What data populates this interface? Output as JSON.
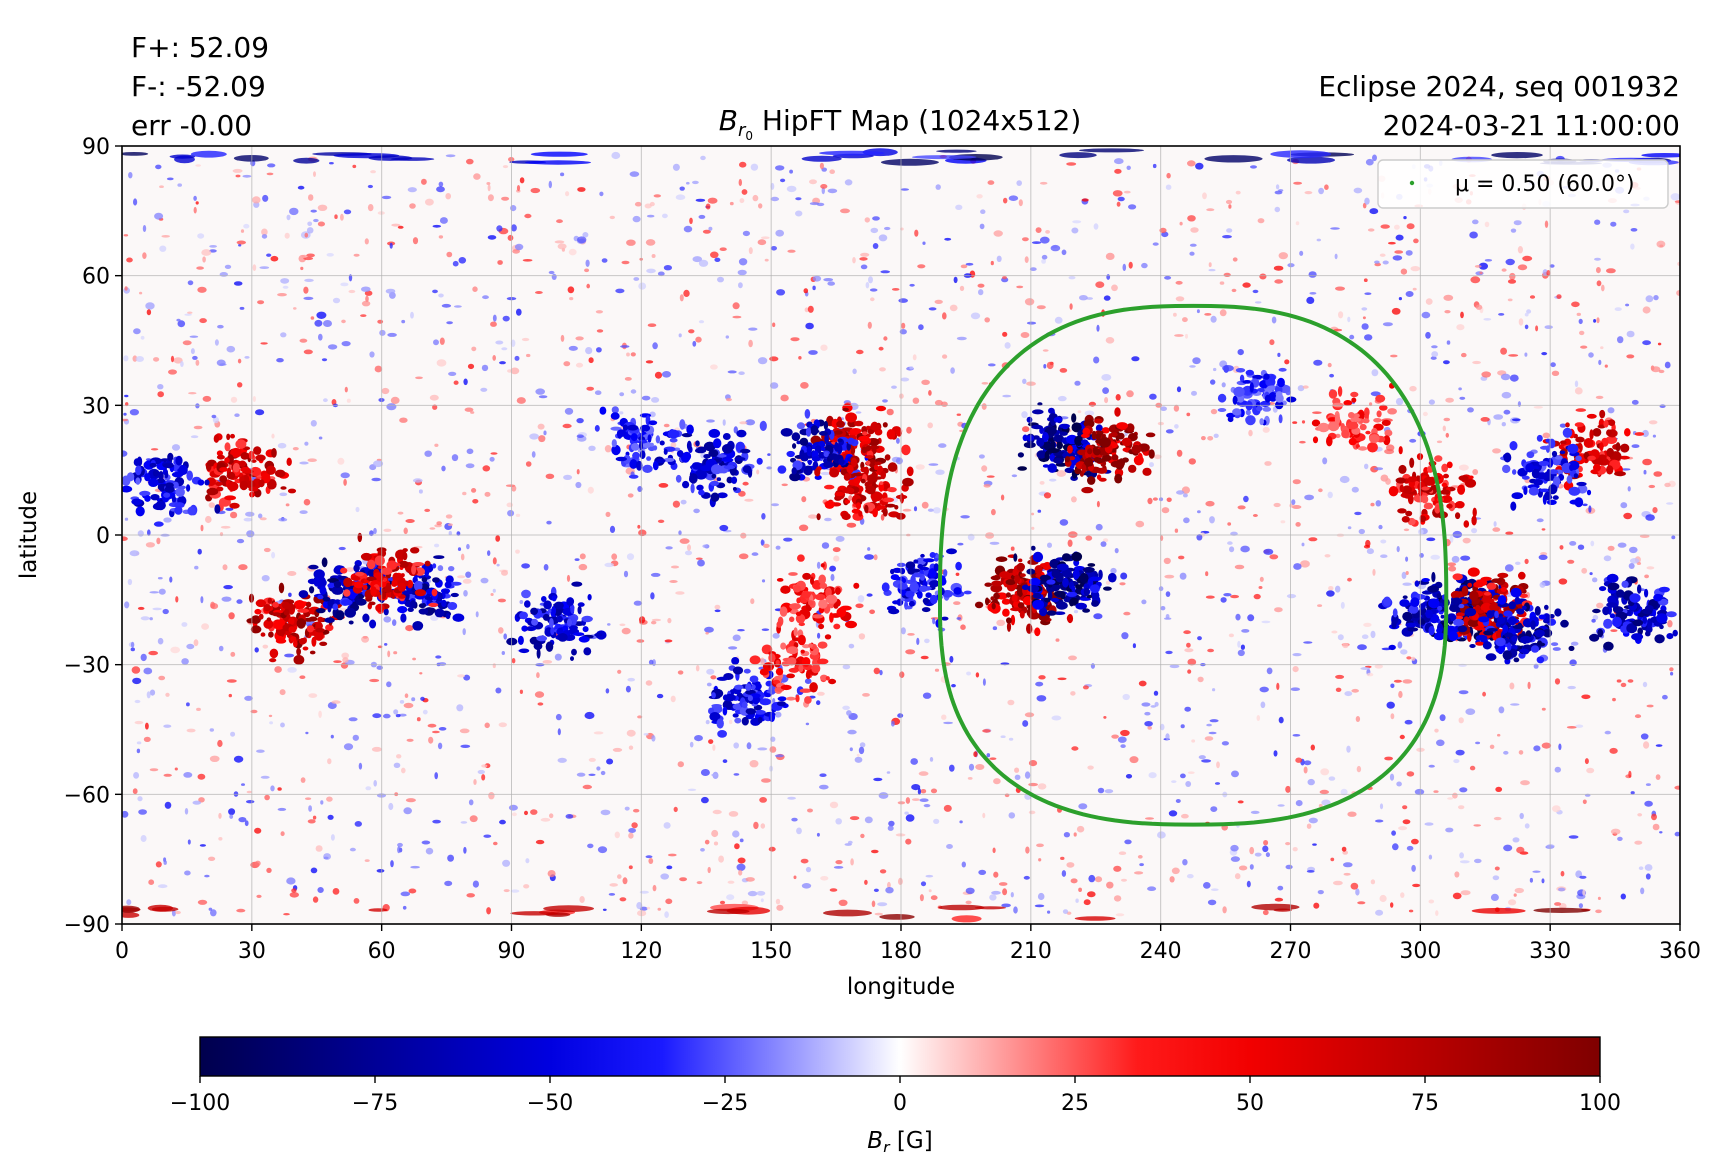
{
  "info_left": [
    "F+: 52.09",
    "F-: -52.09",
    "err -0.00"
  ],
  "info_right": [
    "Eclipse 2024, seq 001932",
    "2024-03-21 11:00:00"
  ],
  "chart_data": {
    "type": "heatmap",
    "title_main": "B",
    "title_sub": "r",
    "title_subsub": "0",
    "title_rest": " HipFT Map (1024x512)",
    "xlabel": "longitude",
    "ylabel": "latitude",
    "xlim": [
      0,
      360
    ],
    "ylim": [
      -90,
      90
    ],
    "xticks": [
      0,
      30,
      60,
      90,
      120,
      150,
      180,
      210,
      240,
      270,
      300,
      330,
      360
    ],
    "yticks": [
      90,
      60,
      30,
      0,
      -30,
      -60,
      -90
    ],
    "ytick_labels": [
      "90",
      "60",
      "30",
      "0",
      "−30",
      "−60",
      "−90"
    ],
    "grid": true,
    "colormap": "seismic",
    "colorbar": {
      "label_main": "B",
      "label_sub": "r",
      "label_unit": " [G]",
      "range": [
        -100,
        100
      ],
      "ticks": [
        -100,
        -75,
        -50,
        -25,
        0,
        25,
        50,
        75,
        100
      ],
      "tick_labels": [
        "−100",
        "−75",
        "−50",
        "−25",
        "0",
        "25",
        "50",
        "75",
        "100"
      ]
    },
    "legend": {
      "label": "μ = 0.50 (60.0°)",
      "position": "top-right",
      "color": "#2ca02c"
    },
    "mu_contour": {
      "color": "#2ca02c",
      "center_lon": 247.5,
      "lon_half_width": 58.5,
      "lat_top": 53,
      "lat_bottom": -67,
      "lat_center": -15
    },
    "active_regions": [
      {
        "lon": 218,
        "lat": 22,
        "polarity": "negative",
        "strength": 100
      },
      {
        "lon": 228,
        "lat": 20,
        "polarity": "positive",
        "strength": 100
      },
      {
        "lon": 208,
        "lat": -13,
        "polarity": "positive",
        "strength": 100
      },
      {
        "lon": 218,
        "lat": -11,
        "polarity": "negative",
        "strength": 95
      },
      {
        "lon": 170,
        "lat": 21,
        "polarity": "positive",
        "strength": 90
      },
      {
        "lon": 162,
        "lat": 19,
        "polarity": "negative",
        "strength": 80
      },
      {
        "lon": 172,
        "lat": 10,
        "polarity": "positive",
        "strength": 80
      },
      {
        "lon": 137,
        "lat": 17,
        "polarity": "negative",
        "strength": 75
      },
      {
        "lon": 40,
        "lat": -20,
        "polarity": "positive",
        "strength": 90
      },
      {
        "lon": 52,
        "lat": -12,
        "polarity": "negative",
        "strength": 85
      },
      {
        "lon": 70,
        "lat": -13,
        "polarity": "negative",
        "strength": 80
      },
      {
        "lon": 62,
        "lat": -10,
        "polarity": "positive",
        "strength": 80
      },
      {
        "lon": 27,
        "lat": 15,
        "polarity": "positive",
        "strength": 80
      },
      {
        "lon": 10,
        "lat": 12,
        "polarity": "negative",
        "strength": 70
      },
      {
        "lon": 100,
        "lat": -20,
        "polarity": "negative",
        "strength": 75
      },
      {
        "lon": 120,
        "lat": 22,
        "polarity": "negative",
        "strength": 60
      },
      {
        "lon": 160,
        "lat": -15,
        "polarity": "positive",
        "strength": 60
      },
      {
        "lon": 185,
        "lat": -12,
        "polarity": "negative",
        "strength": 70
      },
      {
        "lon": 312,
        "lat": -18,
        "polarity": "negative",
        "strength": 95
      },
      {
        "lon": 317,
        "lat": -17,
        "polarity": "positive",
        "strength": 90
      },
      {
        "lon": 323,
        "lat": -22,
        "polarity": "negative",
        "strength": 85
      },
      {
        "lon": 303,
        "lat": 10,
        "polarity": "positive",
        "strength": 75
      },
      {
        "lon": 302,
        "lat": -18,
        "polarity": "negative",
        "strength": 80
      },
      {
        "lon": 340,
        "lat": 20,
        "polarity": "positive",
        "strength": 80
      },
      {
        "lon": 350,
        "lat": -18,
        "polarity": "negative",
        "strength": 80
      },
      {
        "lon": 330,
        "lat": 15,
        "polarity": "negative",
        "strength": 65
      },
      {
        "lon": 285,
        "lat": 26,
        "polarity": "positive",
        "strength": 55
      },
      {
        "lon": 262,
        "lat": 33,
        "polarity": "negative",
        "strength": 55
      },
      {
        "lon": 145,
        "lat": -38,
        "polarity": "negative",
        "strength": 70
      },
      {
        "lon": 155,
        "lat": -30,
        "polarity": "positive",
        "strength": 60
      }
    ]
  }
}
